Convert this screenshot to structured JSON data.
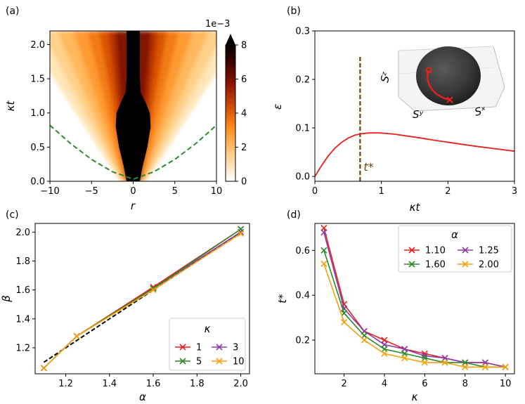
{
  "chart_data": [
    {
      "id": "a",
      "panel_label": "(a)",
      "type": "heatmap",
      "xlabel": "r",
      "ylabel": "κt",
      "xlim": [
        -10,
        10
      ],
      "ylim": [
        0,
        2.2
      ],
      "xticks": [
        "−10",
        "−5",
        "0",
        "5",
        "10"
      ],
      "xtick_values": [
        -10,
        -5,
        0,
        5,
        10
      ],
      "yticks": [
        "0.0",
        "0.5",
        "1.0",
        "1.5",
        "2.0"
      ],
      "ytick_values": [
        0,
        0.5,
        1.0,
        1.5,
        2.0
      ],
      "colorbar": {
        "scale_label": "1e−3",
        "ticks": [
          "0",
          "2",
          "4",
          "6",
          "8"
        ],
        "tick_values": [
          0,
          2,
          4,
          6,
          8
        ],
        "range": [
          0,
          8
        ],
        "extend": "max",
        "colormap": "gist_heat_r",
        "colors": [
          "#ffffff",
          "#ffdd99",
          "#ff9a2e",
          "#e05a00",
          "#a51800",
          "#5a0000",
          "#000000"
        ]
      },
      "light_cone": {
        "style": "dashed",
        "color": "#2e8b2e",
        "points": [
          [
            -10,
            0.82
          ],
          [
            -7.5,
            0.55
          ],
          [
            -5,
            0.32
          ],
          [
            -2.5,
            0.14
          ],
          [
            0,
            0.03
          ],
          [
            2.5,
            0.14
          ],
          [
            5,
            0.32
          ],
          [
            7.5,
            0.55
          ],
          [
            10,
            0.82
          ]
        ]
      },
      "dark_core": {
        "description_values": "half-width in r versus κt",
        "profile": [
          [
            0,
            0.8
          ],
          [
            0.2,
            1.1
          ],
          [
            0.5,
            1.7
          ],
          [
            0.8,
            2.1
          ],
          [
            1.0,
            2.0
          ],
          [
            1.15,
            1.5
          ],
          [
            1.3,
            0.9
          ],
          [
            1.5,
            0.8
          ],
          [
            2.2,
            0.8
          ]
        ]
      }
    },
    {
      "id": "b",
      "panel_label": "(b)",
      "type": "line",
      "xlabel": "κt",
      "ylabel": "ε",
      "xlim": [
        0,
        3
      ],
      "ylim": [
        -0.01,
        0.3
      ],
      "xticks": [
        "0",
        "1",
        "2",
        "3"
      ],
      "xtick_values": [
        0,
        1,
        2,
        3
      ],
      "yticks": [
        "0.0",
        "0.1",
        "0.2",
        "0.3"
      ],
      "ytick_values": [
        0,
        0.1,
        0.2,
        0.3
      ],
      "series": [
        {
          "color": "#e8201c",
          "x": [
            0,
            0.1,
            0.2,
            0.3,
            0.4,
            0.5,
            0.6,
            0.7,
            0.8,
            0.9,
            1.0,
            1.2,
            1.4,
            1.6,
            1.8,
            2.0,
            2.2,
            2.4,
            2.6,
            2.8,
            3.0
          ],
          "y": [
            0,
            0.022,
            0.042,
            0.058,
            0.07,
            0.079,
            0.085,
            0.088,
            0.0895,
            0.0898,
            0.0895,
            0.087,
            0.083,
            0.079,
            0.0745,
            0.0705,
            0.0665,
            0.0625,
            0.059,
            0.0555,
            0.052
          ]
        }
      ],
      "vline": {
        "x": 0.68,
        "ymax": 0.25,
        "color": "#6b3e0a",
        "style": "dashed",
        "label": "t*"
      },
      "inset": {
        "type": "sphere-3d",
        "axis_labels": [
          "Sᶻ",
          "Sʸ",
          "Sˣ"
        ]
      }
    },
    {
      "id": "c",
      "panel_label": "(c)",
      "type": "line",
      "xlabel": "α",
      "ylabel": "β",
      "xlim": [
        1.06,
        2.04
      ],
      "ylim": [
        1.02,
        2.06
      ],
      "xticks": [
        "1.2",
        "1.4",
        "1.6",
        "1.8",
        "2.0"
      ],
      "xtick_values": [
        1.2,
        1.4,
        1.6,
        1.8,
        2.0
      ],
      "yticks": [
        "1.2",
        "1.4",
        "1.6",
        "1.8",
        "2.0"
      ],
      "ytick_values": [
        1.2,
        1.4,
        1.6,
        1.8,
        2.0
      ],
      "x": [
        1.1,
        1.25,
        1.6,
        2.0
      ],
      "series": [
        {
          "name": "1",
          "color": "#e8201c",
          "y": [
            1.06,
            1.28,
            1.62,
            2.02
          ]
        },
        {
          "name": "3",
          "color": "#8a3ca8",
          "y": [
            1.06,
            1.28,
            1.61,
            2.0
          ]
        },
        {
          "name": "5",
          "color": "#2a8a2a",
          "y": [
            1.06,
            1.28,
            1.61,
            2.02
          ]
        },
        {
          "name": "10",
          "color": "#f5a20b",
          "y": [
            1.06,
            1.28,
            1.6,
            1.99
          ]
        }
      ],
      "fit_line": {
        "x": [
          1.1,
          2.0
        ],
        "y": [
          1.1,
          2.0
        ],
        "color": "#000000",
        "style": "dashed"
      },
      "legend": {
        "title": "κ",
        "location": "lower-right",
        "columns": 2
      }
    },
    {
      "id": "d",
      "panel_label": "(d)",
      "type": "line",
      "xlabel": "κ",
      "ylabel": "t*",
      "xlim": [
        0.55,
        10.45
      ],
      "ylim": [
        0.05,
        0.72
      ],
      "xticks": [
        "2",
        "4",
        "6",
        "8",
        "10"
      ],
      "xtick_values": [
        2,
        4,
        6,
        8,
        10
      ],
      "yticks": [
        "0.2",
        "0.4",
        "0.6"
      ],
      "ytick_values": [
        0.2,
        0.4,
        0.6
      ],
      "x": [
        1,
        2,
        3,
        4,
        5,
        6,
        7,
        8,
        9,
        10
      ],
      "series": [
        {
          "name": "1.10",
          "color": "#e8201c",
          "y": [
            0.7,
            0.36,
            0.24,
            0.2,
            0.16,
            0.14,
            0.12,
            0.1,
            0.1,
            0.08
          ]
        },
        {
          "name": "1.25",
          "color": "#8a3ca8",
          "y": [
            0.68,
            0.34,
            0.24,
            0.18,
            0.16,
            0.13,
            0.12,
            0.1,
            0.1,
            0.08
          ]
        },
        {
          "name": "1.60",
          "color": "#2a8a2a",
          "y": [
            0.6,
            0.32,
            0.22,
            0.16,
            0.14,
            0.12,
            0.1,
            0.1,
            0.08,
            0.08
          ]
        },
        {
          "name": "2.00",
          "color": "#f5a20b",
          "y": [
            0.54,
            0.28,
            0.2,
            0.14,
            0.12,
            0.1,
            0.1,
            0.08,
            0.08,
            0.08
          ]
        }
      ],
      "legend": {
        "title": "α",
        "location": "upper-right",
        "columns": 2
      }
    }
  ]
}
